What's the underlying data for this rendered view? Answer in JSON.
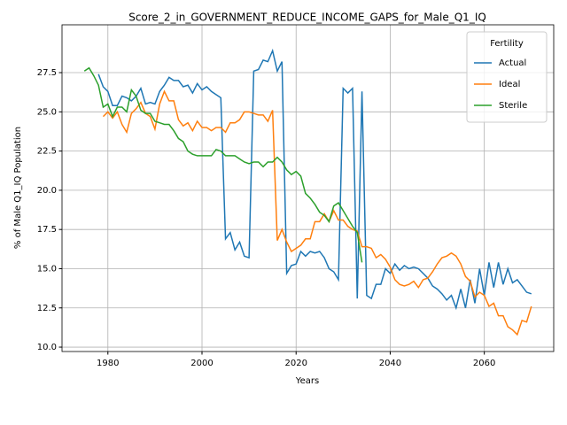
{
  "chart_data": {
    "type": "line",
    "title": "Score_2_in_GOVERNMENT_REDUCE_INCOME_GAPS_for_Male_Q1_IQ",
    "x_label": "Years",
    "y_label": "% of Male Q1_IQ Population",
    "legend_title": "Fertility",
    "legend_position": "upper right",
    "grid": true,
    "xlim": [
      1970.25,
      2074.75
    ],
    "xticks": [
      1980,
      2000,
      2020,
      2040,
      2060
    ],
    "ylim": [
      9.72,
      30.55
    ],
    "yticks": [
      {
        "value": 10,
        "label": "10.0"
      },
      12.5,
      {
        "value": 15,
        "label": "15.0"
      },
      17.5,
      {
        "value": 20,
        "label": "20.0"
      },
      22.5,
      {
        "value": 25,
        "label": "25.0"
      },
      27.5
    ],
    "series": [
      {
        "name": "Actual",
        "color": "#1f77b4",
        "x": [
          1978,
          1979,
          1980,
          1981,
          1982,
          1983,
          1984,
          1985,
          1986,
          1987,
          1988,
          1989,
          1990,
          1991,
          1992,
          1993,
          1994,
          1995,
          1996,
          1997,
          1998,
          1999,
          2000,
          2001,
          2002,
          2003,
          2004,
          2005,
          2006,
          2007,
          2008,
          2009,
          2010,
          2011,
          2012,
          2013,
          2014,
          2015,
          2016,
          2017,
          2018,
          2019,
          2020,
          2021,
          2022,
          2023,
          2024,
          2025,
          2026,
          2027,
          2028,
          2029,
          2030,
          2031,
          2032,
          2033,
          2034,
          2035,
          2036,
          2037,
          2038,
          2039,
          2040,
          2041,
          2042,
          2043,
          2044,
          2045,
          2046,
          2047,
          2048,
          2049,
          2050,
          2051,
          2052,
          2053,
          2054,
          2055,
          2056,
          2057,
          2058,
          2059,
          2060,
          2061,
          2062,
          2063,
          2064,
          2065,
          2066,
          2067,
          2068,
          2069,
          2070
        ],
        "values": [
          27.4,
          26.6,
          26.3,
          25.4,
          25.4,
          26.0,
          25.9,
          25.7,
          26.0,
          26.5,
          25.5,
          25.6,
          25.5,
          26.3,
          26.7,
          27.2,
          27.0,
          27.0,
          26.6,
          26.7,
          26.2,
          26.8,
          26.4,
          26.6,
          26.3,
          26.1,
          25.9,
          16.9,
          17.3,
          16.2,
          16.7,
          15.8,
          15.7,
          27.6,
          27.7,
          28.3,
          28.2,
          28.9,
          27.6,
          28.2,
          14.7,
          15.2,
          15.3,
          16.1,
          15.8,
          16.1,
          16.0,
          16.1,
          15.7,
          15.0,
          14.8,
          14.3,
          26.5,
          26.2,
          26.5,
          13.1,
          26.3,
          13.3,
          13.1,
          14.0,
          14.0,
          15.0,
          14.7,
          15.3,
          14.9,
          15.2,
          15.0,
          15.1,
          15.0,
          14.7,
          14.4,
          13.9,
          13.7,
          13.4,
          13.0,
          13.3,
          12.5,
          13.7,
          12.5,
          14.3,
          12.8,
          15.0,
          13.3,
          15.4,
          13.8,
          15.4,
          14.0,
          15.0,
          14.1,
          14.3,
          13.9,
          13.5,
          13.4
        ]
      },
      {
        "name": "Ideal",
        "color": "#ff7f0e",
        "x": [
          1979,
          1980,
          1981,
          1982,
          1983,
          1984,
          1985,
          1986,
          1987,
          1988,
          1989,
          1990,
          1991,
          1992,
          1993,
          1994,
          1995,
          1996,
          1997,
          1998,
          1999,
          2000,
          2001,
          2002,
          2003,
          2004,
          2005,
          2006,
          2007,
          2008,
          2009,
          2010,
          2011,
          2012,
          2013,
          2014,
          2015,
          2016,
          2017,
          2018,
          2019,
          2020,
          2021,
          2022,
          2023,
          2024,
          2025,
          2026,
          2027,
          2028,
          2029,
          2030,
          2031,
          2032,
          2033,
          2034,
          2035,
          2036,
          2037,
          2038,
          2039,
          2040,
          2041,
          2042,
          2043,
          2044,
          2045,
          2046,
          2047,
          2048,
          2049,
          2050,
          2051,
          2052,
          2053,
          2054,
          2055,
          2056,
          2057,
          2058,
          2059,
          2060,
          2061,
          2062,
          2063,
          2064,
          2065,
          2066,
          2067,
          2068,
          2069,
          2070
        ],
        "values": [
          24.7,
          25.0,
          24.6,
          25.0,
          24.2,
          23.7,
          24.9,
          25.2,
          25.6,
          24.9,
          24.7,
          23.9,
          25.5,
          26.3,
          25.7,
          25.7,
          24.5,
          24.1,
          24.3,
          23.8,
          24.4,
          24.0,
          24.0,
          23.8,
          24.0,
          24.0,
          23.7,
          24.3,
          24.3,
          24.5,
          25.0,
          25.0,
          24.9,
          24.8,
          24.8,
          24.4,
          25.1,
          16.8,
          17.5,
          16.7,
          16.1,
          16.3,
          16.5,
          16.9,
          16.9,
          18.0,
          18.0,
          18.5,
          18.0,
          18.7,
          18.1,
          18.1,
          17.7,
          17.5,
          17.4,
          16.4,
          16.4,
          16.3,
          15.7,
          15.9,
          15.6,
          15.1,
          14.3,
          14.0,
          13.9,
          14.0,
          14.2,
          13.8,
          14.3,
          14.4,
          14.8,
          15.3,
          15.7,
          15.8,
          16.0,
          15.8,
          15.3,
          14.5,
          14.2,
          13.2,
          13.5,
          13.3,
          12.6,
          12.8,
          12.0,
          12.0,
          11.3,
          11.1,
          10.8,
          11.7,
          11.6,
          12.6
        ]
      },
      {
        "name": "Sterile",
        "color": "#2ca02c",
        "x": [
          1975,
          1976,
          1977,
          1978,
          1979,
          1980,
          1981,
          1982,
          1983,
          1984,
          1985,
          1986,
          1987,
          1988,
          1989,
          1990,
          1991,
          1992,
          1993,
          1994,
          1995,
          1996,
          1997,
          1998,
          1999,
          2000,
          2001,
          2002,
          2003,
          2004,
          2005,
          2006,
          2007,
          2008,
          2009,
          2010,
          2011,
          2012,
          2013,
          2014,
          2015,
          2016,
          2017,
          2018,
          2019,
          2020,
          2021,
          2022,
          2023,
          2024,
          2025,
          2026,
          2027,
          2028,
          2029,
          2030,
          2031,
          2032,
          2033,
          2034
        ],
        "values": [
          27.6,
          27.8,
          27.3,
          26.7,
          25.3,
          25.5,
          24.7,
          25.3,
          25.3,
          25.0,
          26.4,
          26.0,
          25.1,
          24.9,
          24.9,
          24.4,
          24.3,
          24.2,
          24.2,
          23.8,
          23.3,
          23.1,
          22.5,
          22.3,
          22.2,
          22.2,
          22.2,
          22.2,
          22.6,
          22.5,
          22.2,
          22.2,
          22.2,
          22.0,
          21.8,
          21.7,
          21.8,
          21.8,
          21.5,
          21.8,
          21.8,
          22.1,
          21.8,
          21.3,
          21.0,
          21.2,
          20.9,
          19.8,
          19.5,
          19.1,
          18.6,
          18.4,
          18.0,
          19.0,
          19.2,
          18.7,
          18.2,
          17.7,
          17.3,
          15.4
        ]
      }
    ]
  }
}
